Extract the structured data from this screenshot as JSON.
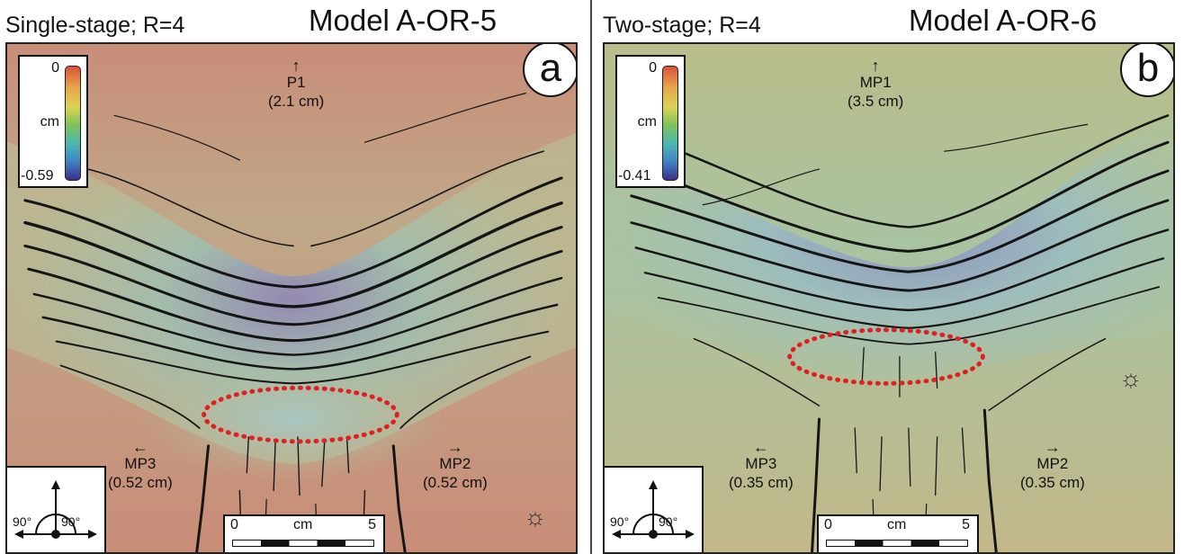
{
  "figure": {
    "panels": [
      {
        "id": "a",
        "subtitle": "Single-stage; R=4",
        "model_title": "Model A-OR-5",
        "panel_letter": "a",
        "legend": {
          "max": "0",
          "unit": "cm",
          "min": "-0.59"
        },
        "motions": [
          {
            "label": "P1",
            "value": "(2.1 cm)",
            "arrow": "↑"
          },
          {
            "label": "MP3",
            "value": "(0.52 cm)",
            "arrow": "←"
          },
          {
            "label": "MP2",
            "value": "(0.52 cm)",
            "arrow": "→"
          }
        ],
        "compass": {
          "left_angle": "90°",
          "right_angle": "90°"
        },
        "scale": {
          "start": "0",
          "unit": "cm",
          "end": "5"
        },
        "light_icon": "lightbulb-icon",
        "surface_tone": "#c98d78"
      },
      {
        "id": "b",
        "subtitle": "Two-stage; R=4",
        "model_title": "Model A-OR-6",
        "panel_letter": "b",
        "legend": {
          "max": "0",
          "unit": "cm",
          "min": "-0.41"
        },
        "motions": [
          {
            "label": "MP1",
            "value": "(3.5 cm)",
            "arrow": "↑"
          },
          {
            "label": "MP3",
            "value": "(0.35 cm)",
            "arrow": "←"
          },
          {
            "label": "MP2",
            "value": "(0.35 cm)",
            "arrow": "→"
          }
        ],
        "compass": {
          "left_angle": "90°",
          "right_angle": "90°"
        },
        "scale": {
          "start": "0",
          "unit": "cm",
          "end": "5"
        },
        "light_icon": "lightbulb-icon",
        "surface_tone": "#b9bd8a"
      }
    ],
    "colors": {
      "highlight_ellipse": "#e02020",
      "fault_lines": "#111111"
    }
  }
}
